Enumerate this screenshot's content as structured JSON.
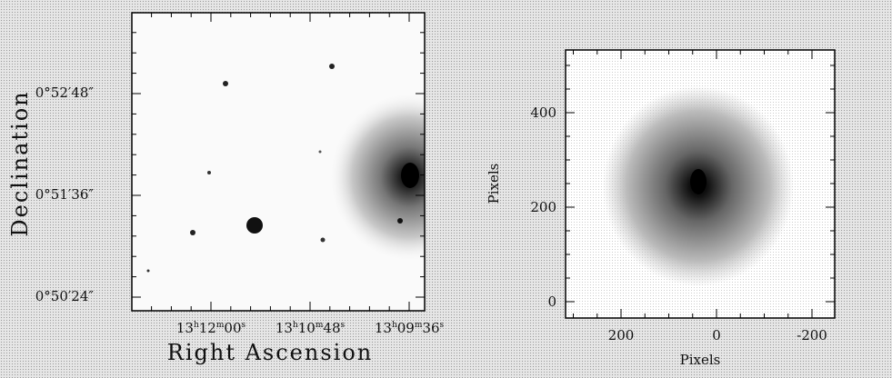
{
  "left_panel": {
    "y_label": "Declination",
    "x_label": "Right Ascension",
    "y_ticks": [
      "0°52′48″",
      "0°51′36″",
      "0°50′24″"
    ],
    "x_ticks": [
      [
        "13",
        "h",
        "12",
        "m",
        "00",
        "s"
      ],
      [
        "13",
        "h",
        "10",
        "m",
        "48",
        "s"
      ],
      [
        "13",
        "h",
        "09",
        "m",
        "36",
        "s"
      ]
    ]
  },
  "right_panel": {
    "y_label": "Pixels",
    "x_label": "Pixels",
    "y_ticks": [
      "400",
      "200",
      "0"
    ],
    "x_ticks": [
      "200",
      "0",
      "-200"
    ]
  }
}
